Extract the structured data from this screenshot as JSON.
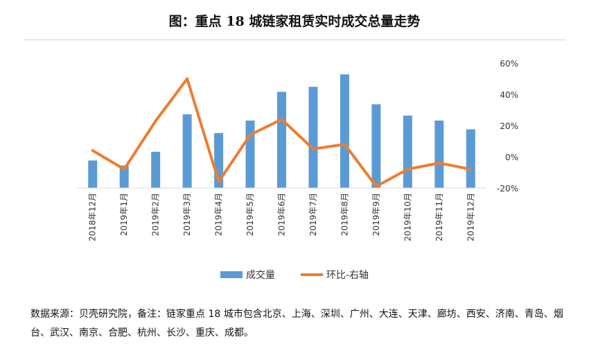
{
  "title": "图：重点 18 城链家租赁实时成交总量走势",
  "footnote": "数据来源：贝壳研究院，备注：链家重点 18 城市包含北京、上海、深圳、广州、大连、天津、廊坊、西安、济南、青岛、烟台、武汉、南京、合肥、杭州、长沙、重庆、成都。",
  "chart_data": {
    "type": "bar",
    "title": "图：重点 18 城链家租赁实时成交总量走势",
    "categories": [
      "2018年12月",
      "2019年1月",
      "2019年2月",
      "2019年3月",
      "2019年4月",
      "2019年5月",
      "2019年6月",
      "2019年7月",
      "2019年8月",
      "2019年9月",
      "2019年10月",
      "2019年11月",
      "2019年12月"
    ],
    "series": [
      {
        "name": "成交量",
        "type": "bar",
        "axis": "left",
        "color": "#5b9bd5",
        "values": [
          22,
          18,
          29,
          59,
          44,
          54,
          77,
          81,
          91,
          67,
          58,
          54,
          47
        ]
      },
      {
        "name": "环比-右轴",
        "type": "line",
        "axis": "right",
        "color": "#ed7d31",
        "values": [
          4,
          -8,
          23,
          50,
          -16,
          14,
          24,
          5,
          8,
          -19,
          -8,
          -4,
          -8
        ]
      }
    ],
    "left_axis": {
      "min": 0,
      "max": 100,
      "visible": false
    },
    "right_axis": {
      "min": -20,
      "max": 60,
      "step": 20,
      "unit": "%",
      "tick_labels": [
        "-20%",
        "0%",
        "20%",
        "40%",
        "60%"
      ]
    },
    "grid": false,
    "legend": "bottom-center"
  }
}
